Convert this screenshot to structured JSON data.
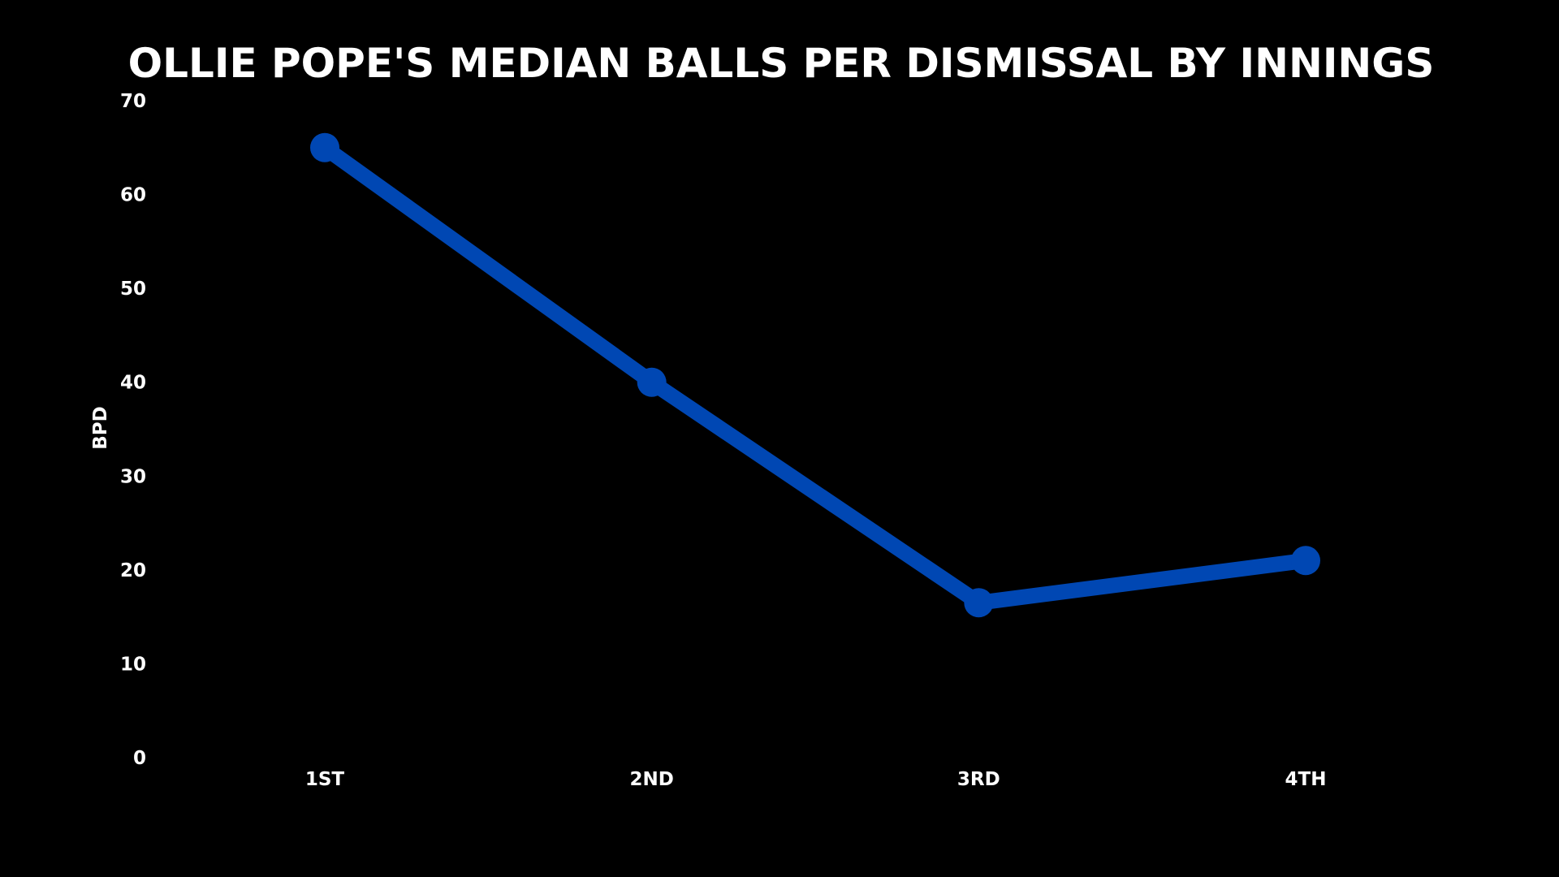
{
  "chart_data": {
    "type": "line",
    "title": "OLLIE POPE'S MEDIAN BALLS PER DISMISSAL BY INNINGS",
    "xlabel": "",
    "ylabel": "BPD",
    "categories": [
      "1ST",
      "2ND",
      "3RD",
      "4TH"
    ],
    "series": [
      {
        "values": [
          65,
          40,
          16.5,
          21
        ],
        "color": "#0047b3"
      }
    ],
    "ylim": [
      0,
      70
    ],
    "yticks": [
      0,
      10,
      20,
      30,
      40,
      50,
      60,
      70
    ],
    "grid": false,
    "background": "#000000",
    "text_color": "#ffffff"
  }
}
